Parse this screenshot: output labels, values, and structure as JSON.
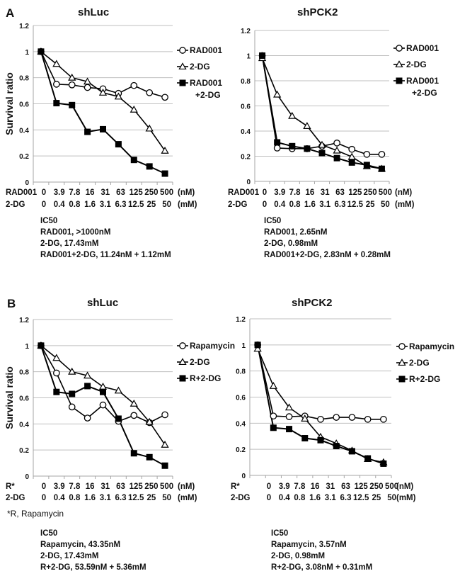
{
  "figure": {
    "panel_labels": [
      "A",
      "B"
    ],
    "ylabel": "Survival ratio",
    "footnote": "*R, Rapamycin"
  },
  "chart_data": [
    {
      "id": "A-left",
      "panel": "A",
      "type": "line",
      "title": "shLuc",
      "ylabel": "Survival ratio",
      "ylim": [
        0,
        1.2
      ],
      "yticks": [
        "0",
        "0.2",
        "0.4",
        "0.6",
        "0.8",
        "1",
        "1.2"
      ],
      "grid": true,
      "legend_position": "right",
      "x_rows": [
        {
          "label": "RAD001",
          "ticks": [
            "0",
            "3.9",
            "7.8",
            "16",
            "31",
            "63",
            "125",
            "250",
            "500"
          ],
          "unit": "(nM)"
        },
        {
          "label": "2-DG",
          "ticks": [
            "0",
            "0.4",
            "0.8",
            "1.6",
            "3.1",
            "6.3",
            "12.5",
            "25",
            "50"
          ],
          "unit": "(mM)"
        }
      ],
      "series": [
        {
          "name": "RAD001",
          "marker": "circle-open",
          "values": [
            1.0,
            0.75,
            0.745,
            0.725,
            0.715,
            0.68,
            0.74,
            0.685,
            0.65
          ]
        },
        {
          "name": "2-DG",
          "marker": "triangle-open",
          "values": [
            1.0,
            0.905,
            0.8,
            0.77,
            0.685,
            0.655,
            0.555,
            0.41,
            0.24
          ]
        },
        {
          "name": "RAD001\n+2-DG",
          "marker": "square-filled",
          "values": [
            1.0,
            0.605,
            0.59,
            0.385,
            0.405,
            0.29,
            0.17,
            0.12,
            0.065
          ]
        }
      ],
      "ic50": [
        "IC50",
        "RAD001, >1000nM",
        "2-DG, 17.43mM",
        "RAD001+2-DG, 11.24nM + 1.12mM"
      ]
    },
    {
      "id": "A-right",
      "panel": "A",
      "type": "line",
      "title": "shPCK2",
      "ylabel": "",
      "ylim": [
        0,
        1.2
      ],
      "yticks": [
        "0",
        "0.2",
        "0.4",
        "0.6",
        "0.8",
        "1",
        "1.2"
      ],
      "grid": true,
      "legend_position": "right",
      "x_rows": [
        {
          "label": "RAD001",
          "ticks": [
            "0",
            "3.9",
            "7.8",
            "16",
            "31",
            "63",
            "125",
            "250",
            "500"
          ],
          "unit": "(nM)"
        },
        {
          "label": "2-DG",
          "ticks": [
            "0",
            "0.4",
            "0.8",
            "1.6",
            "3.1",
            "6.3",
            "12.5",
            "25",
            "50"
          ],
          "unit": "(mM)"
        }
      ],
      "series": [
        {
          "name": "RAD001",
          "marker": "circle-open",
          "values": [
            1.0,
            0.265,
            0.26,
            0.26,
            0.28,
            0.305,
            0.255,
            0.215,
            0.215
          ]
        },
        {
          "name": "2-DG",
          "marker": "triangle-open",
          "values": [
            0.98,
            0.69,
            0.52,
            0.44,
            0.29,
            0.245,
            0.195,
            0.12,
            0.1
          ]
        },
        {
          "name": "RAD001\n+2-DG",
          "marker": "square-filled",
          "values": [
            1.0,
            0.31,
            0.28,
            0.26,
            0.225,
            0.185,
            0.15,
            0.13,
            0.1
          ]
        }
      ],
      "ic50": [
        "IC50",
        "RAD001, 2.65nM",
        "2-DG, 0.98mM",
        "RAD001+2-DG, 2.83nM + 0.28mM"
      ]
    },
    {
      "id": "B-left",
      "panel": "B",
      "type": "line",
      "title": "shLuc",
      "ylabel": "Survival ratio",
      "ylim": [
        0,
        1.2
      ],
      "yticks": [
        "0",
        "0.2",
        "0.4",
        "0.6",
        "0.8",
        "1",
        "1.2"
      ],
      "grid": true,
      "legend_position": "right",
      "x_rows": [
        {
          "label": "R*",
          "ticks": [
            "0",
            "3.9",
            "7.8",
            "16",
            "31",
            "63",
            "125",
            "250",
            "500"
          ],
          "unit": "(nM)"
        },
        {
          "label": "2-DG",
          "ticks": [
            "0",
            "0.4",
            "0.8",
            "1.6",
            "3.1",
            "6.3",
            "12.5",
            "25",
            "50"
          ],
          "unit": "(mM)"
        }
      ],
      "series": [
        {
          "name": "Rapamycin",
          "marker": "circle-open",
          "values": [
            1.0,
            0.79,
            0.53,
            0.445,
            0.545,
            0.42,
            0.465,
            0.41,
            0.47
          ]
        },
        {
          "name": "2-DG",
          "marker": "triangle-open",
          "values": [
            1.0,
            0.905,
            0.8,
            0.77,
            0.685,
            0.655,
            0.555,
            0.415,
            0.24
          ]
        },
        {
          "name": "R+2-DG",
          "marker": "square-filled",
          "values": [
            1.0,
            0.645,
            0.63,
            0.69,
            0.645,
            0.44,
            0.175,
            0.145,
            0.08
          ]
        }
      ],
      "ic50": [
        "IC50",
        "Rapamycin, 43.35nM",
        "2-DG, 17.43mM",
        "R+2-DG, 53.59nM + 5.36mM"
      ]
    },
    {
      "id": "B-right",
      "panel": "B",
      "type": "line",
      "title": "shPCK2",
      "ylabel": "",
      "ylim": [
        0,
        1.2
      ],
      "yticks": [
        "0",
        "0.2",
        "0.4",
        "0.6",
        "0.8",
        "1",
        "1.2"
      ],
      "grid": true,
      "legend_position": "right",
      "x_rows": [
        {
          "label": "R*",
          "ticks": [
            "0",
            "3.9",
            "7.8",
            "16",
            "31",
            "63",
            "125",
            "250",
            "500"
          ],
          "unit": "(nM)"
        },
        {
          "label": "2-DG",
          "ticks": [
            "0",
            "0.4",
            "0.8",
            "1.6",
            "3.1",
            "6.3",
            "12.5",
            "25",
            "50"
          ],
          "unit": "(mM)"
        }
      ],
      "series": [
        {
          "name": "Rapamycin",
          "marker": "circle-open",
          "values": [
            1.0,
            0.455,
            0.45,
            0.455,
            0.43,
            0.445,
            0.445,
            0.43,
            0.43
          ]
        },
        {
          "name": "2-DG",
          "marker": "triangle-open",
          "values": [
            0.97,
            0.685,
            0.52,
            0.435,
            0.295,
            0.245,
            0.19,
            0.125,
            0.1
          ]
        },
        {
          "name": "R+2-DG",
          "marker": "square-filled",
          "values": [
            1.0,
            0.365,
            0.355,
            0.285,
            0.27,
            0.225,
            0.185,
            0.13,
            0.09
          ]
        }
      ],
      "ic50": [
        "IC50",
        "Rapamycin, 3.57nM",
        "2-DG, 0.98mM",
        "R+2-DG, 3.08nM + 0.31mM"
      ]
    }
  ],
  "colors": {
    "line": "#000000",
    "grid": "#bfbfbf",
    "axis": "#a6a6a6",
    "error_bar": "#808080",
    "text": "#111111"
  }
}
